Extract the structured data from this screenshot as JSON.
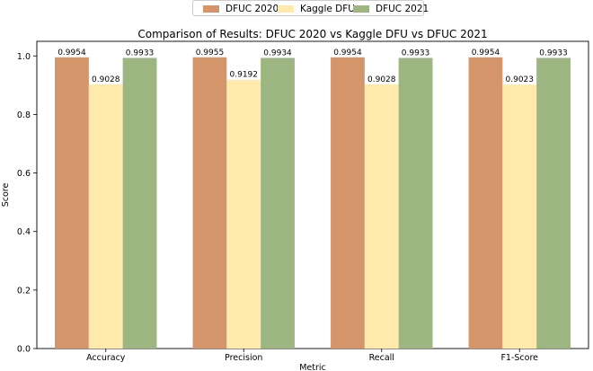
{
  "chart_data": {
    "type": "bar",
    "title": "Comparison of Results: DFUC 2020 vs Kaggle DFU vs DFUC 2021",
    "xlabel": "Metric",
    "ylabel": "Score",
    "ylim": [
      0,
      1.05
    ],
    "yticks": [
      "0.0",
      "0.2",
      "0.4",
      "0.6",
      "0.8",
      "1.0"
    ],
    "categories": [
      "Accuracy",
      "Precision",
      "Recall",
      "F1-Score"
    ],
    "series": [
      {
        "name": "DFUC 2020",
        "color": "#D4956B",
        "values": [
          0.9954,
          0.9955,
          0.9954,
          0.9954
        ],
        "labels": [
          "0.9954",
          "0.9955",
          "0.9954",
          "0.9954"
        ]
      },
      {
        "name": "Kaggle DFU",
        "color": "#FFEAAC",
        "values": [
          0.9028,
          0.9192,
          0.9028,
          0.9023
        ],
        "labels": [
          "0.9028",
          "0.9192",
          "0.9028",
          "0.9023"
        ]
      },
      {
        "name": "DFUC 2021",
        "color": "#9DB581",
        "values": [
          0.9933,
          0.9934,
          0.9933,
          0.9933
        ],
        "labels": [
          "0.9933",
          "0.9934",
          "0.9933",
          "0.9933"
        ]
      }
    ],
    "legend_position": "top-center",
    "grid": false
  }
}
